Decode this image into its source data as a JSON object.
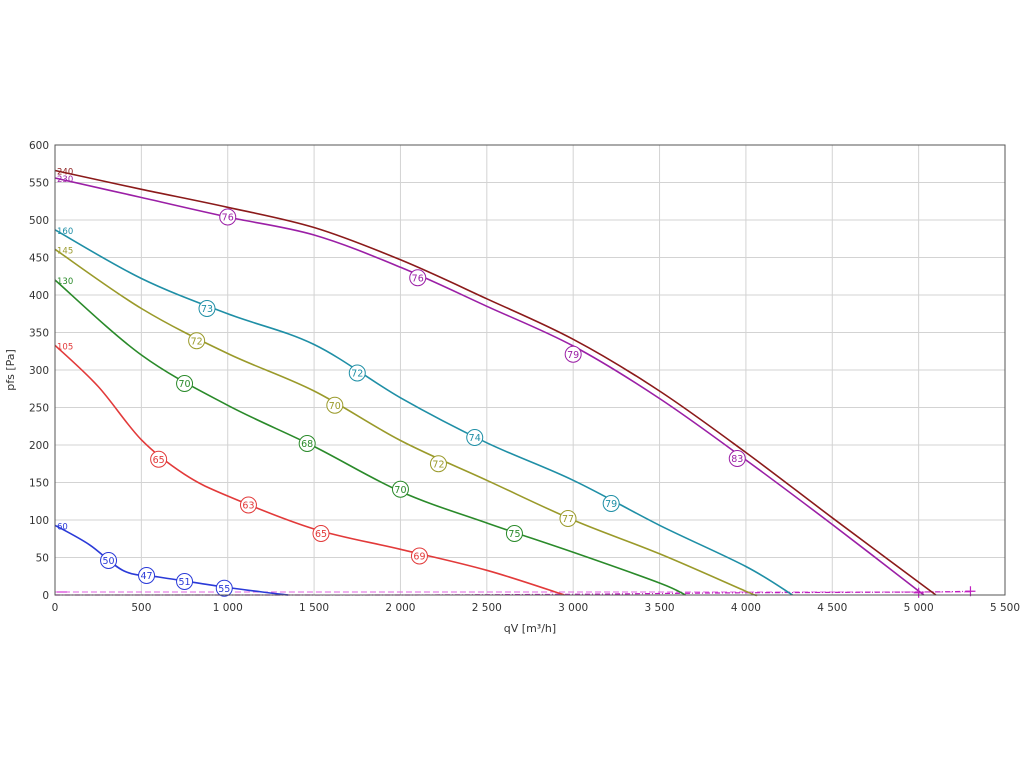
{
  "chart_data": {
    "type": "line",
    "title": "",
    "xlabel": "qV [m³/h]",
    "ylabel": "pfs [Pa]",
    "xlim": [
      0,
      5500
    ],
    "ylim": [
      0,
      600
    ],
    "x_ticks": [
      0,
      500,
      1000,
      1500,
      2000,
      2500,
      3000,
      3500,
      4000,
      4500,
      5000,
      5500
    ],
    "x_tick_labels": [
      "0",
      "500",
      "1 000",
      "1 500",
      "2 000",
      "2 500",
      "3 000",
      "3 500",
      "4 000",
      "4 500",
      "5 000",
      "5 500"
    ],
    "y_ticks": [
      0,
      50,
      100,
      150,
      200,
      250,
      300,
      350,
      400,
      450,
      500,
      550,
      600
    ],
    "y_tick_labels": [
      "0",
      "50",
      "100",
      "150",
      "200",
      "250",
      "300",
      "350",
      "400",
      "450",
      "500",
      "550",
      "600"
    ],
    "grid": true,
    "series": [
      {
        "name": "240",
        "color": "#8b1a1a",
        "points": [
          [
            0,
            566
          ],
          [
            500,
            541
          ],
          [
            1000,
            517
          ],
          [
            1500,
            490
          ],
          [
            2000,
            447
          ],
          [
            2500,
            395
          ],
          [
            3000,
            341
          ],
          [
            3500,
            272
          ],
          [
            4000,
            190
          ],
          [
            4500,
            103
          ],
          [
            5100,
            0
          ]
        ],
        "markers": []
      },
      {
        "name": "230",
        "color": "#9b1fa6",
        "points": [
          [
            0,
            556
          ],
          [
            500,
            530
          ],
          [
            1000,
            504
          ],
          [
            1500,
            480
          ],
          [
            2000,
            437
          ],
          [
            2500,
            385
          ],
          [
            3000,
            332
          ],
          [
            3500,
            262
          ],
          [
            4000,
            180
          ],
          [
            4500,
            94
          ],
          [
            5030,
            0
          ]
        ],
        "markers": [
          {
            "x": 1000,
            "y": 504,
            "label": "76"
          },
          {
            "x": 2100,
            "y": 423,
            "label": "76"
          },
          {
            "x": 3000,
            "y": 321,
            "label": "79"
          },
          {
            "x": 3950,
            "y": 182,
            "label": "83"
          }
        ]
      },
      {
        "name": "160",
        "color": "#1f8fa6",
        "points": [
          [
            0,
            487
          ],
          [
            500,
            422
          ],
          [
            1000,
            375
          ],
          [
            1500,
            334
          ],
          [
            2000,
            263
          ],
          [
            2500,
            203
          ],
          [
            3000,
            153
          ],
          [
            3500,
            93
          ],
          [
            4000,
            38
          ],
          [
            4270,
            0
          ]
        ],
        "markers": [
          {
            "x": 880,
            "y": 382,
            "label": "73"
          },
          {
            "x": 1750,
            "y": 296,
            "label": "72"
          },
          {
            "x": 2430,
            "y": 210,
            "label": "74"
          },
          {
            "x": 3220,
            "y": 122,
            "label": "79"
          }
        ]
      },
      {
        "name": "145",
        "color": "#9a9a2a",
        "points": [
          [
            0,
            461
          ],
          [
            500,
            382
          ],
          [
            1000,
            322
          ],
          [
            1500,
            272
          ],
          [
            2000,
            206
          ],
          [
            2500,
            153
          ],
          [
            3000,
            100
          ],
          [
            3500,
            55
          ],
          [
            4000,
            5
          ],
          [
            4060,
            0
          ]
        ],
        "markers": [
          {
            "x": 820,
            "y": 339,
            "label": "72"
          },
          {
            "x": 1620,
            "y": 253,
            "label": "70"
          },
          {
            "x": 2220,
            "y": 175,
            "label": "72"
          },
          {
            "x": 2970,
            "y": 102,
            "label": "77"
          }
        ]
      },
      {
        "name": "130",
        "color": "#2a8a2a",
        "points": [
          [
            0,
            420
          ],
          [
            500,
            320
          ],
          [
            1000,
            253
          ],
          [
            1500,
            198
          ],
          [
            2000,
            138
          ],
          [
            2500,
            96
          ],
          [
            3000,
            57
          ],
          [
            3500,
            16
          ],
          [
            3650,
            0
          ]
        ],
        "markers": [
          {
            "x": 750,
            "y": 282,
            "label": "70"
          },
          {
            "x": 1460,
            "y": 202,
            "label": "68"
          },
          {
            "x": 2000,
            "y": 141,
            "label": "70"
          },
          {
            "x": 2660,
            "y": 82,
            "label": "75"
          }
        ]
      },
      {
        "name": "105",
        "color": "#e23a3a",
        "points": [
          [
            0,
            333
          ],
          [
            250,
            278
          ],
          [
            500,
            207
          ],
          [
            750,
            161
          ],
          [
            1000,
            132
          ],
          [
            1500,
            88
          ],
          [
            2000,
            61
          ],
          [
            2500,
            33
          ],
          [
            2950,
            0
          ]
        ],
        "markers": [
          {
            "x": 600,
            "y": 181,
            "label": "65"
          },
          {
            "x": 1120,
            "y": 120,
            "label": "63"
          },
          {
            "x": 1540,
            "y": 82,
            "label": "65"
          },
          {
            "x": 2110,
            "y": 52,
            "label": "69"
          }
        ]
      },
      {
        "name": "60",
        "color": "#2a3ad8",
        "points": [
          [
            0,
            93
          ],
          [
            200,
            67
          ],
          [
            400,
            32
          ],
          [
            600,
            24
          ],
          [
            800,
            17
          ],
          [
            1000,
            10
          ],
          [
            1200,
            4
          ],
          [
            1350,
            0
          ]
        ],
        "markers": [
          {
            "x": 310,
            "y": 46,
            "label": "50"
          },
          {
            "x": 530,
            "y": 26,
            "label": "47"
          },
          {
            "x": 750,
            "y": 18,
            "label": "51"
          },
          {
            "x": 980,
            "y": 9,
            "label": "55"
          }
        ]
      }
    ],
    "system_line": {
      "color": "#c020c0",
      "points": [
        [
          0,
          0
        ],
        [
          1000,
          0
        ],
        [
          2000,
          0
        ],
        [
          3000,
          1
        ],
        [
          4000,
          3
        ],
        [
          5000,
          4
        ],
        [
          5300,
          5
        ]
      ]
    },
    "reference_line": {
      "color": "#e060e0",
      "points": [
        [
          0,
          4
        ],
        [
          5300,
          4
        ]
      ]
    },
    "end_markers": [
      {
        "x": 5000,
        "y": 3
      },
      {
        "x": 5300,
        "y": 5
      }
    ]
  }
}
